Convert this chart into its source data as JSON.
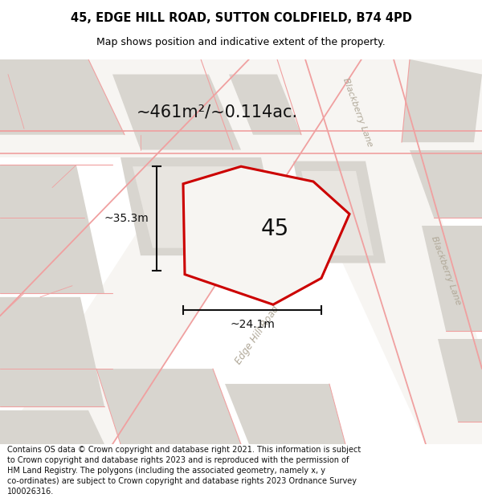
{
  "title_line1": "45, EDGE HILL ROAD, SUTTON COLDFIELD, B74 4PD",
  "title_line2": "Map shows position and indicative extent of the property.",
  "footer": "Contains OS data © Crown copyright and database right 2021. This information is subject to Crown copyright and database rights 2023 and is reproduced with the permission of HM Land Registry. The polygons (including the associated geometry, namely x, y co-ordinates) are subject to Crown copyright and database rights 2023 Ordnance Survey 100026316.",
  "area_label": "~461m²/~0.114ac.",
  "width_label": "~24.1m",
  "height_label": "~35.3m",
  "plot_number": "45",
  "map_bg": "#f7f5f2",
  "block_color": "#d8d5cf",
  "plot_fill": "#f7f5f2",
  "plot_stroke": "#cc0000",
  "road_line_color": "#f0a0a0",
  "dim_line_color": "#111111",
  "road_label_color": "#b0a898",
  "text_color": "#111111"
}
